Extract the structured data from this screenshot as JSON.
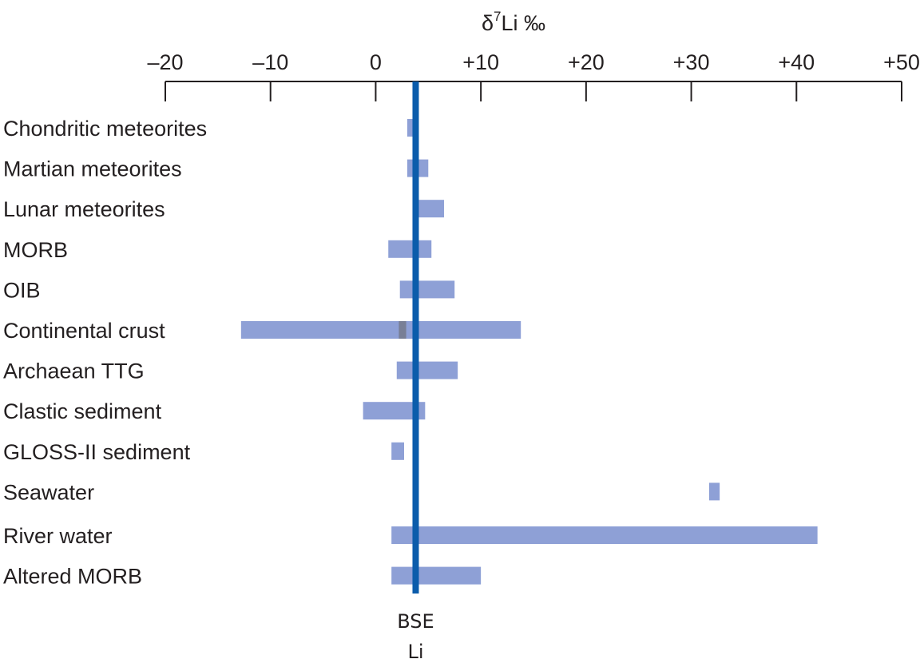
{
  "chart_data": {
    "type": "bar",
    "orientation": "horizontal-range",
    "title": "δ7Li ‰",
    "title_parts": {
      "base": "δ",
      "superscript": "7",
      "rest": "Li ‰"
    },
    "axis_position": "top",
    "xlim": [
      -20,
      50
    ],
    "xticks": [
      -20,
      -10,
      0,
      10,
      20,
      30,
      40,
      50
    ],
    "xtick_labels": [
      "–20",
      "–10",
      "0",
      "+10",
      "+20",
      "+30",
      "+40",
      "+50"
    ],
    "grid": false,
    "categories": [
      "Chondritic meteorites",
      "Martian meteorites",
      "Lunar meteorites",
      "MORB",
      "OIB",
      "Continental crust",
      "Archaean TTG",
      "Clastic sediment",
      "GLOSS-II sediment",
      "Seawater",
      "River water",
      "Altered MORB"
    ],
    "ranges": [
      [
        3.0,
        4.0
      ],
      [
        3.0,
        5.0
      ],
      [
        4.0,
        6.5
      ],
      [
        1.2,
        5.3
      ],
      [
        2.3,
        7.5
      ],
      [
        -12.8,
        13.8
      ],
      [
        2.0,
        7.8
      ],
      [
        -1.2,
        4.7
      ],
      [
        1.5,
        2.7
      ],
      [
        31.7,
        32.7
      ],
      [
        1.5,
        42.0
      ],
      [
        1.5,
        10.0
      ]
    ],
    "highlight": {
      "category": "Continental crust",
      "range": [
        2.2,
        2.9
      ]
    },
    "reference_line": {
      "value": 3.8,
      "label_line1": "BSE",
      "label_line2": "Li"
    },
    "colors": {
      "bar": "#8ea0d6",
      "highlight": "#787f96",
      "reference": "#0b5cab",
      "axis": "#231f20"
    }
  }
}
